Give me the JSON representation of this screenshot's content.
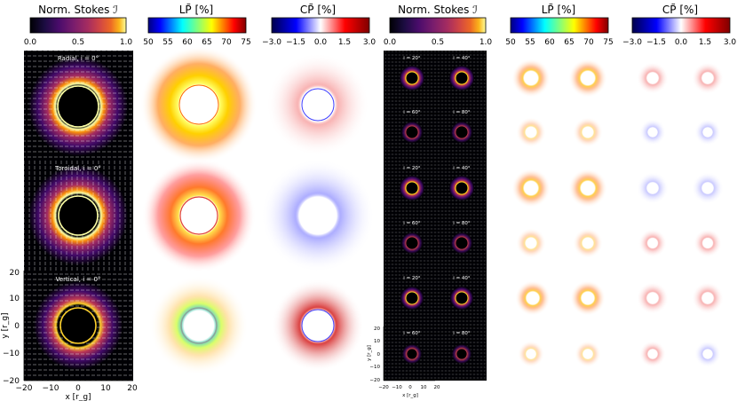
{
  "colorbars": {
    "stokes": {
      "title": "Norm. Stokes ℐ",
      "ticks": [
        "0.0",
        "0.5",
        "1.0"
      ]
    },
    "lp": {
      "title": "LP̃ [%]",
      "ticks": [
        "50",
        "55",
        "60",
        "65",
        "70",
        "75"
      ]
    },
    "cp": {
      "title": "CP̃ [%]",
      "ticks": [
        "−3.0",
        "−1.5",
        "0.0",
        "1.5",
        "3.0"
      ]
    }
  },
  "left_panels": {
    "labels": [
      "Radial, i = 0°",
      "Toroidal, i = 0°",
      "Vertical, i = 0°"
    ],
    "axis": {
      "xlabel": "x [r_g]",
      "ylabel": "y [r_g]",
      "ticks": [
        "−20",
        "−10",
        "0",
        "10",
        "20"
      ]
    }
  },
  "right_panels": {
    "labels": [
      "i = 20°",
      "i = 40°",
      "i = 60°",
      "i = 80°"
    ],
    "axis": {
      "xlabel": "x [r_g]",
      "ylabel": "y [r_g]",
      "xticks": [
        "−20",
        "−10",
        "0",
        "10",
        "20"
      ],
      "yticks": [
        "20",
        "10",
        "0",
        "−10",
        "−20"
      ]
    }
  }
}
